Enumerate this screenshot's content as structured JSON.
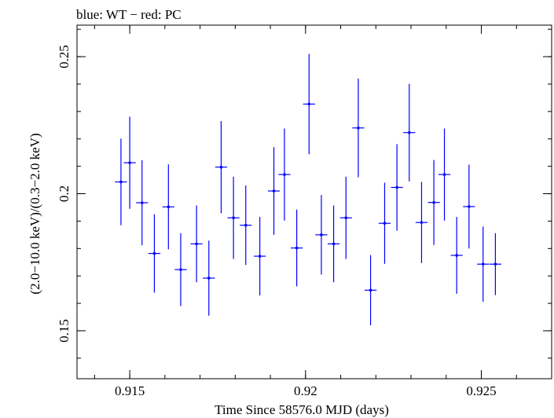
{
  "chart_data": {
    "type": "scatter",
    "title": "blue: WT − red: PC",
    "xlabel": "Time Since 58576.0 MJD (days)",
    "ylabel": "(2.0−10.0 keV)/(0.3−2.0 keV)",
    "xlim": [
      0.9135,
      0.927
    ],
    "ylim": [
      0.1325,
      0.2615
    ],
    "x_ticks": [
      {
        "value": 0.915,
        "label": "0.915"
      },
      {
        "value": 0.92,
        "label": "0.92"
      },
      {
        "value": 0.925,
        "label": "0.925"
      }
    ],
    "y_ticks": [
      {
        "value": 0.15,
        "label": "0.15"
      },
      {
        "value": 0.2,
        "label": "0.2"
      },
      {
        "value": 0.25,
        "label": "0.25"
      }
    ],
    "x_minor_step": 0.001,
    "y_minor_step": 0.01,
    "series": [
      {
        "color": "#0000ff",
        "points": [
          {
            "x": 0.91475,
            "xerr": 0.00017,
            "y": 0.2043,
            "yerr": 0.0158
          },
          {
            "x": 0.915,
            "xerr": 0.00017,
            "y": 0.2113,
            "yerr": 0.0168
          },
          {
            "x": 0.91535,
            "xerr": 0.00017,
            "y": 0.1967,
            "yerr": 0.0155
          },
          {
            "x": 0.9157,
            "xerr": 0.00017,
            "y": 0.1782,
            "yerr": 0.0143
          },
          {
            "x": 0.9161,
            "xerr": 0.00017,
            "y": 0.1952,
            "yerr": 0.0155
          },
          {
            "x": 0.91645,
            "xerr": 0.00017,
            "y": 0.1723,
            "yerr": 0.0133
          },
          {
            "x": 0.9169,
            "xerr": 0.00017,
            "y": 0.1817,
            "yerr": 0.014
          },
          {
            "x": 0.91725,
            "xerr": 0.00017,
            "y": 0.1692,
            "yerr": 0.0137
          },
          {
            "x": 0.9176,
            "xerr": 0.00017,
            "y": 0.2097,
            "yerr": 0.0168
          },
          {
            "x": 0.91795,
            "xerr": 0.00017,
            "y": 0.1912,
            "yerr": 0.015
          },
          {
            "x": 0.9183,
            "xerr": 0.00017,
            "y": 0.1885,
            "yerr": 0.0145
          },
          {
            "x": 0.9187,
            "xerr": 0.00017,
            "y": 0.1772,
            "yerr": 0.0143
          },
          {
            "x": 0.9191,
            "xerr": 0.00017,
            "y": 0.201,
            "yerr": 0.016
          },
          {
            "x": 0.9194,
            "xerr": 0.00017,
            "y": 0.207,
            "yerr": 0.0168
          },
          {
            "x": 0.91975,
            "xerr": 0.00017,
            "y": 0.1802,
            "yerr": 0.014
          },
          {
            "x": 0.9201,
            "xerr": 0.00017,
            "y": 0.2327,
            "yerr": 0.0183
          },
          {
            "x": 0.92045,
            "xerr": 0.00017,
            "y": 0.185,
            "yerr": 0.0145
          },
          {
            "x": 0.9208,
            "xerr": 0.00017,
            "y": 0.1817,
            "yerr": 0.014
          },
          {
            "x": 0.92115,
            "xerr": 0.00017,
            "y": 0.1912,
            "yerr": 0.015
          },
          {
            "x": 0.9215,
            "xerr": 0.00017,
            "y": 0.224,
            "yerr": 0.018
          },
          {
            "x": 0.92185,
            "xerr": 0.00017,
            "y": 0.1648,
            "yerr": 0.0128
          },
          {
            "x": 0.92225,
            "xerr": 0.00017,
            "y": 0.1892,
            "yerr": 0.0148
          },
          {
            "x": 0.9226,
            "xerr": 0.00017,
            "y": 0.2023,
            "yerr": 0.0158
          },
          {
            "x": 0.92295,
            "xerr": 0.00017,
            "y": 0.2223,
            "yerr": 0.0178
          },
          {
            "x": 0.9233,
            "xerr": 0.00017,
            "y": 0.1895,
            "yerr": 0.0148
          },
          {
            "x": 0.92365,
            "xerr": 0.00017,
            "y": 0.1968,
            "yerr": 0.0155
          },
          {
            "x": 0.92395,
            "xerr": 0.00017,
            "y": 0.207,
            "yerr": 0.0168
          },
          {
            "x": 0.9243,
            "xerr": 0.00017,
            "y": 0.1775,
            "yerr": 0.014
          },
          {
            "x": 0.92465,
            "xerr": 0.00017,
            "y": 0.1953,
            "yerr": 0.0153
          },
          {
            "x": 0.92505,
            "xerr": 0.00017,
            "y": 0.1743,
            "yerr": 0.0137
          },
          {
            "x": 0.9254,
            "xerr": 0.00017,
            "y": 0.1743,
            "yerr": 0.0113
          }
        ]
      }
    ]
  }
}
